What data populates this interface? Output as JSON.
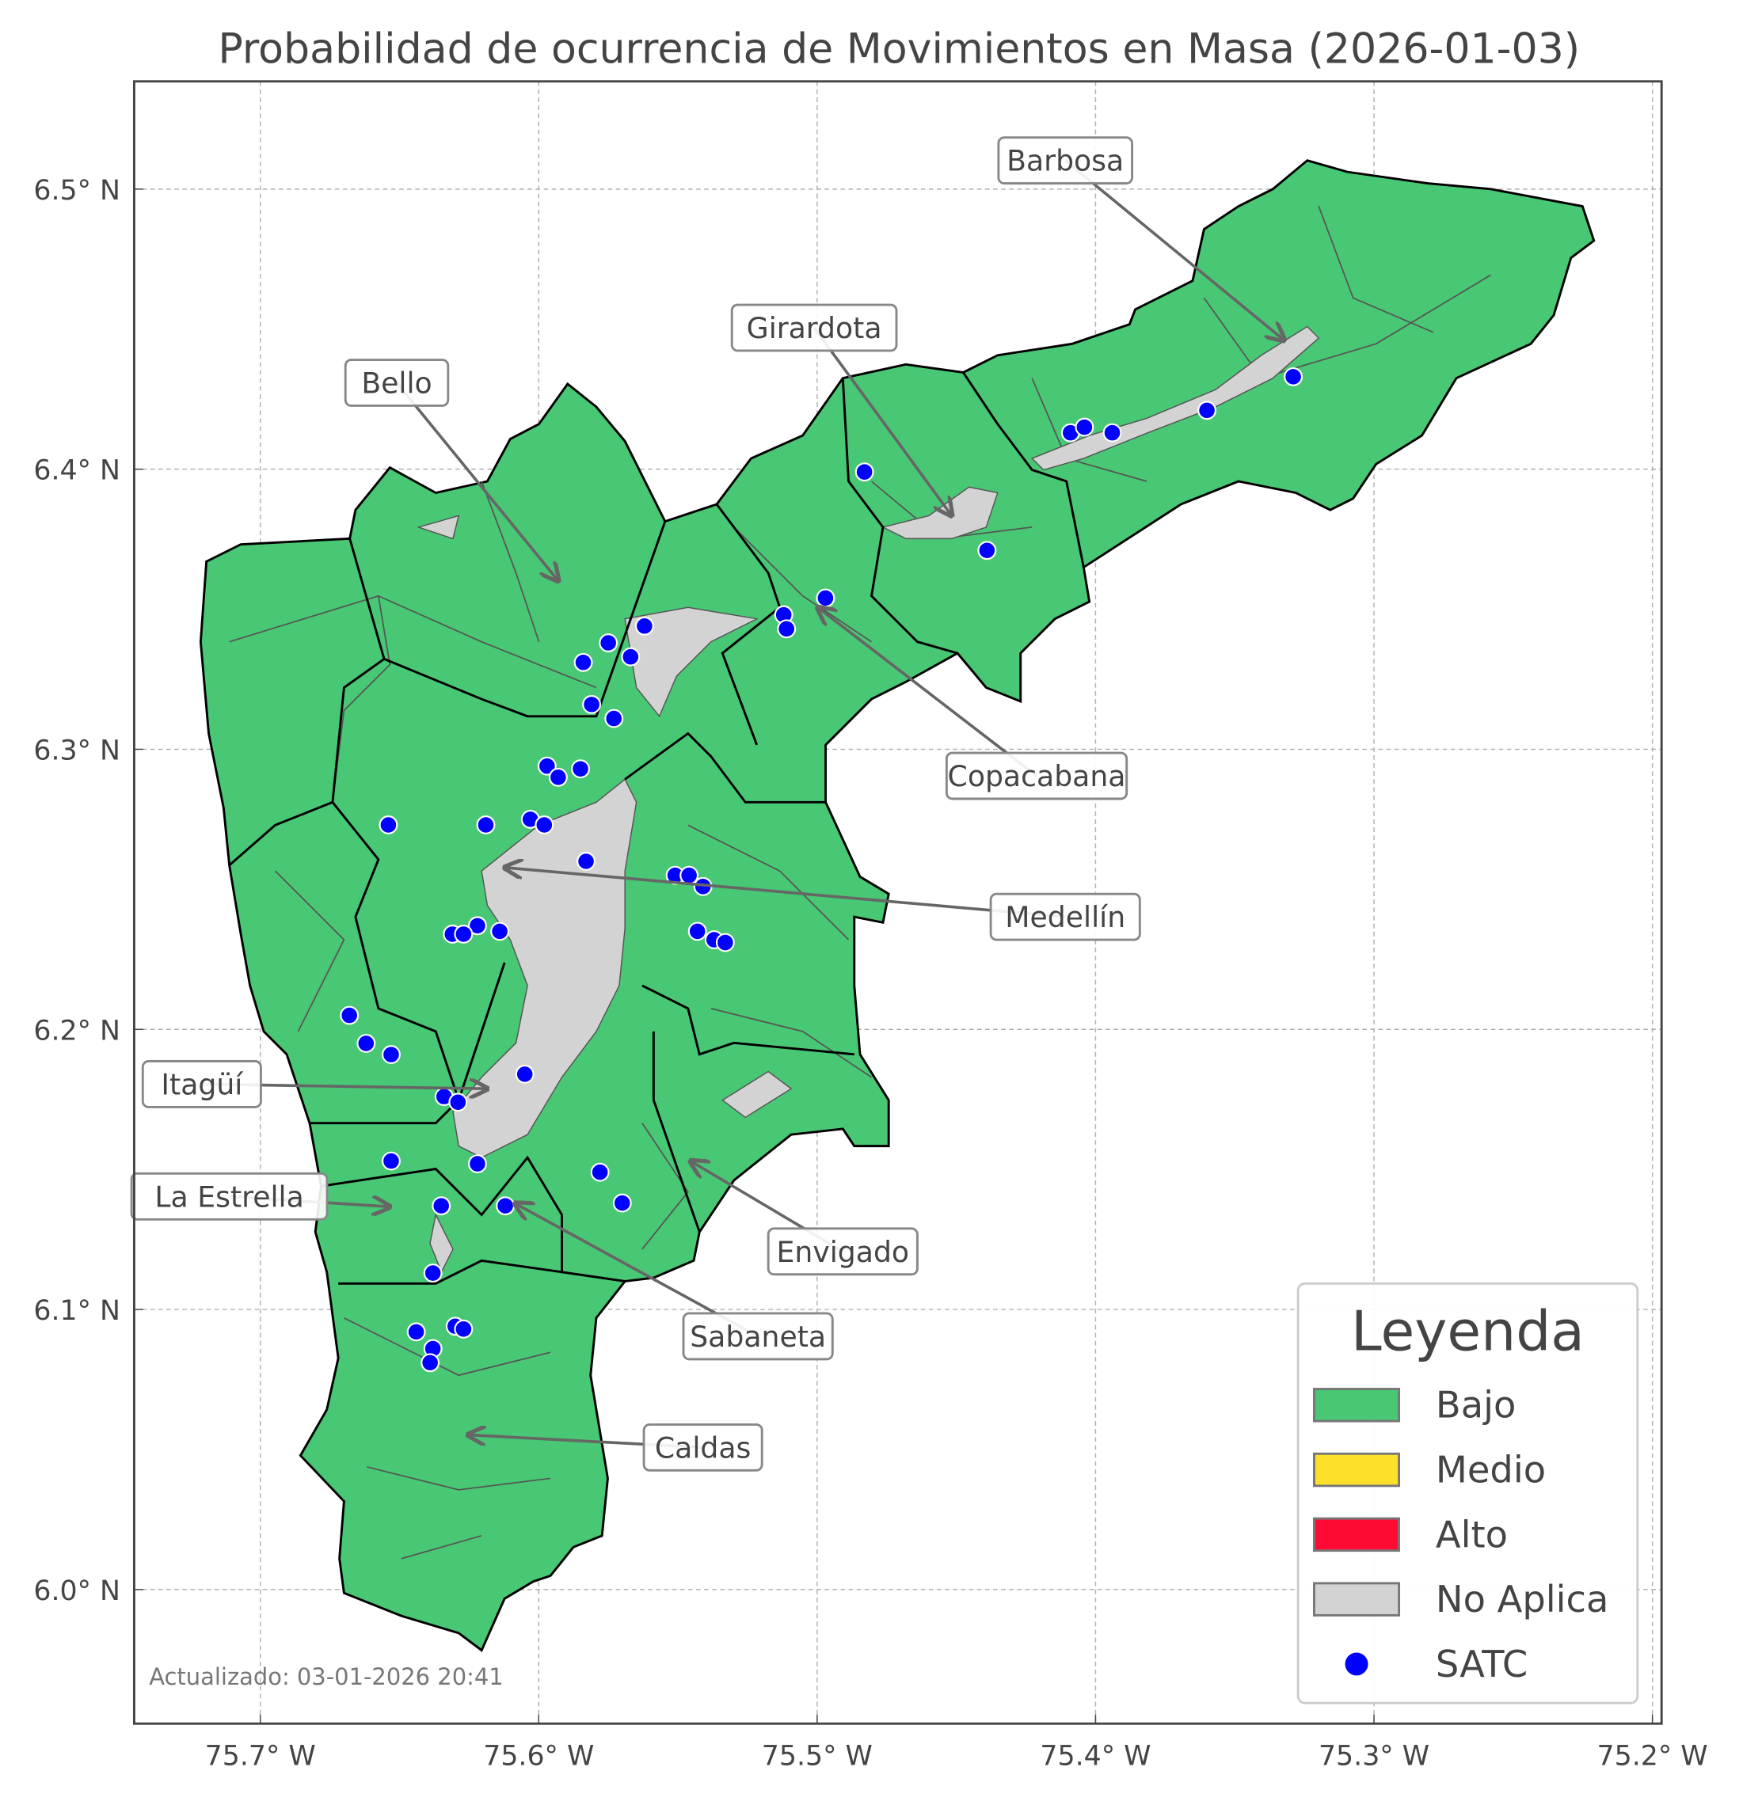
{
  "title": "Probabilidad de ocurrencia de Movimientos en Masa (2026-01-03)",
  "footer": "Actualizado: 03-01-2026 20:41",
  "axes": {
    "x_ticks": [
      "75.7° W",
      "75.6° W",
      "75.5° W",
      "75.4° W",
      "75.3° W",
      "75.2° W"
    ],
    "x_tick_values": [
      -75.7,
      -75.6,
      -75.5,
      -75.4,
      -75.3,
      -75.2
    ],
    "y_ticks": [
      "6.5° N",
      "6.4° N",
      "6.3° N",
      "6.2° N",
      "6.1° N",
      "6.0° N"
    ],
    "y_tick_values": [
      6.5,
      6.4,
      6.3,
      6.2,
      6.1,
      6.0
    ],
    "grid": true
  },
  "legend": {
    "title": "Leyenda",
    "placement": "lower-right",
    "items": [
      {
        "label": "Bajo",
        "color": "#48c774",
        "kind": "patch"
      },
      {
        "label": "Medio",
        "color": "#fde02a",
        "kind": "patch"
      },
      {
        "label": "Alto",
        "color": "#ff0a35",
        "kind": "patch"
      },
      {
        "label": "No Aplica",
        "color": "#d3d3d3",
        "kind": "patch"
      },
      {
        "label": "SATC",
        "color": "#0000ff",
        "kind": "point"
      }
    ]
  },
  "municipalities": [
    "Barbosa",
    "Girardota",
    "Bello",
    "Copacabana",
    "Medellín",
    "Itagüí",
    "La Estrella",
    "Envigado",
    "Sabaneta",
    "Caldas"
  ],
  "risk_level_all": "Bajo",
  "satc_points": [
    [
      -75.483,
      6.399
    ],
    [
      -75.409,
      6.413
    ],
    [
      -75.404,
      6.415
    ],
    [
      -75.394,
      6.413
    ],
    [
      -75.36,
      6.421
    ],
    [
      -75.329,
      6.433
    ],
    [
      -75.439,
      6.371
    ],
    [
      -75.497,
      6.354
    ],
    [
      -75.512,
      6.348
    ],
    [
      -75.511,
      6.343
    ],
    [
      -75.562,
      6.344
    ],
    [
      -75.575,
      6.338
    ],
    [
      -75.567,
      6.333
    ],
    [
      -75.584,
      6.331
    ],
    [
      -75.581,
      6.316
    ],
    [
      -75.573,
      6.311
    ],
    [
      -75.597,
      6.294
    ],
    [
      -75.585,
      6.293
    ],
    [
      -75.593,
      6.29
    ],
    [
      -75.654,
      6.273
    ],
    [
      -75.619,
      6.273
    ],
    [
      -75.603,
      6.275
    ],
    [
      -75.598,
      6.273
    ],
    [
      -75.583,
      6.26
    ],
    [
      -75.551,
      6.255
    ],
    [
      -75.546,
      6.255
    ],
    [
      -75.541,
      6.251
    ],
    [
      -75.543,
      6.235
    ],
    [
      -75.537,
      6.232
    ],
    [
      -75.533,
      6.231
    ],
    [
      -75.622,
      6.237
    ],
    [
      -75.631,
      6.234
    ],
    [
      -75.627,
      6.234
    ],
    [
      -75.614,
      6.235
    ],
    [
      -75.668,
      6.205
    ],
    [
      -75.662,
      6.195
    ],
    [
      -75.653,
      6.191
    ],
    [
      -75.605,
      6.184
    ],
    [
      -75.634,
      6.176
    ],
    [
      -75.629,
      6.174
    ],
    [
      -75.653,
      6.153
    ],
    [
      -75.622,
      6.152
    ],
    [
      -75.578,
      6.149
    ],
    [
      -75.57,
      6.138
    ],
    [
      -75.635,
      6.137
    ],
    [
      -75.612,
      6.137
    ],
    [
      -75.638,
      6.113
    ],
    [
      -75.644,
      6.092
    ],
    [
      -75.63,
      6.094
    ],
    [
      -75.627,
      6.093
    ],
    [
      -75.638,
      6.086
    ],
    [
      -75.639,
      6.081
    ]
  ]
}
